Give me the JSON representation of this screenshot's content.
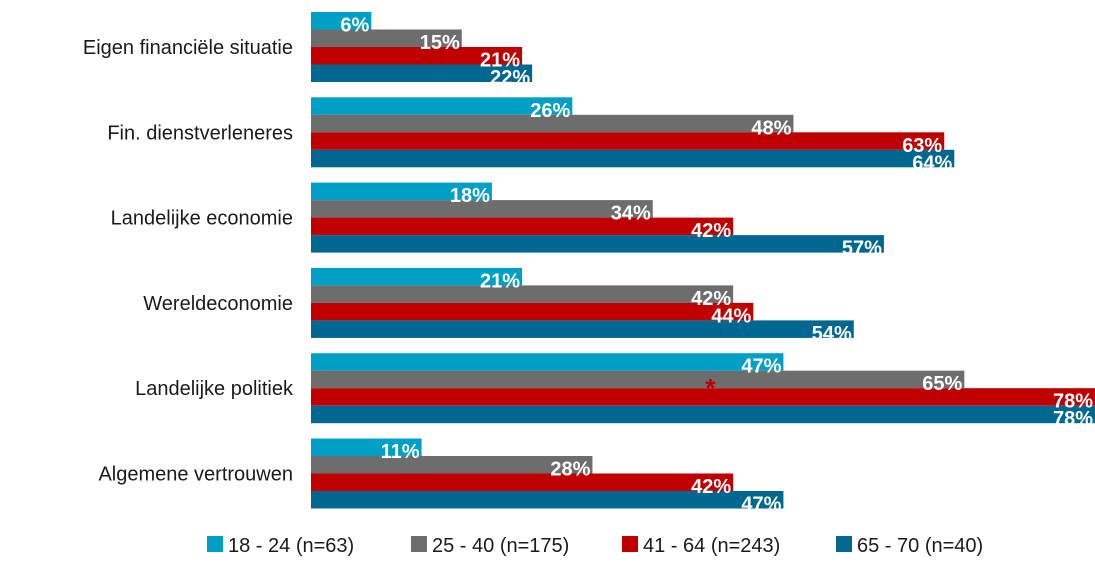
{
  "chart_data": {
    "type": "bar",
    "orientation": "horizontal",
    "categories": [
      "Eigen financiële situatie",
      "Fin. dienstverleneres",
      "Landelijke economie",
      "Wereldeconomie",
      "Landelijke politiek",
      "Algemene vertrouwen"
    ],
    "series": [
      {
        "name": "18 - 24 (n=63)",
        "color": "#00a0c6",
        "values": [
          6,
          26,
          18,
          21,
          47,
          11
        ]
      },
      {
        "name": "25 - 40 (n=175)",
        "color": "#6d6d6d",
        "values": [
          15,
          48,
          34,
          42,
          65,
          28
        ]
      },
      {
        "name": "41 - 64 (n=243)",
        "color": "#c00000",
        "values": [
          21,
          63,
          42,
          44,
          78,
          42
        ]
      },
      {
        "name": "65 - 70 (n=40)",
        "color": "#006890",
        "values": [
          22,
          64,
          57,
          54,
          78,
          47
        ]
      }
    ],
    "value_labels": [
      [
        "6%",
        "26%",
        "18%",
        "21%",
        "47%",
        "11%"
      ],
      [
        "15%",
        "48%",
        "34%",
        "42%",
        "65%",
        "28%"
      ],
      [
        "21%",
        "63%",
        "42%",
        "44%",
        "78%",
        "42%"
      ],
      [
        "22%",
        "64%",
        "57%",
        "54%",
        "78%",
        "47%"
      ]
    ],
    "xlim": [
      0,
      78
    ],
    "legend_position": "bottom",
    "grid": false,
    "annotations": [
      {
        "text": "*",
        "category_index": 4,
        "series_index": 1,
        "color": "#c00000"
      }
    ]
  }
}
